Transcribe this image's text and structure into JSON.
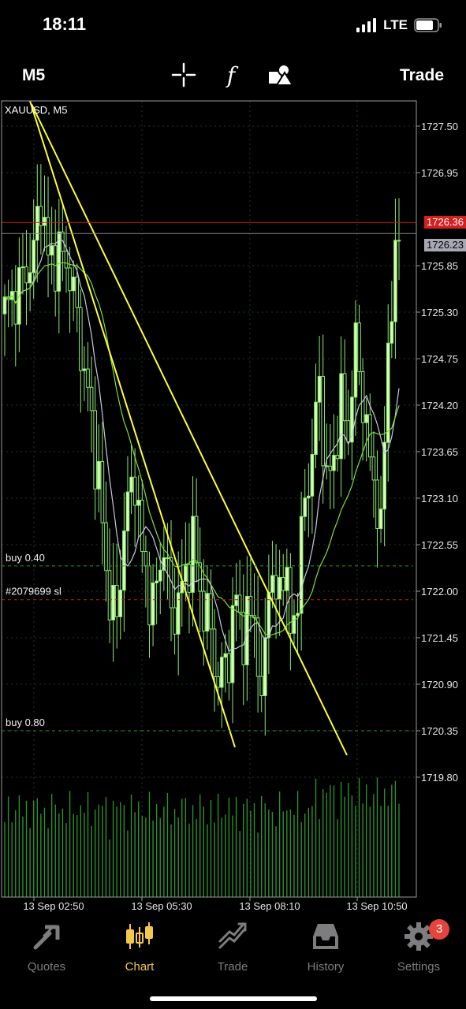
{
  "status_bar": {
    "time": "18:11",
    "network": "LTE"
  },
  "toolbar": {
    "timeframe": "M5",
    "trade_label": "Trade"
  },
  "chart": {
    "symbol_label": "XAUUSD, M5",
    "price_labels": [
      "1727.50",
      "1726.95",
      "1725.85",
      "1725.30",
      "1724.75",
      "1724.20",
      "1723.65",
      "1723.10",
      "1722.55",
      "1722.00",
      "1721.45",
      "1720.90",
      "1720.35",
      "1719.80"
    ],
    "bid_label": "1726.36",
    "ask_label": "1726.23",
    "time_labels": [
      "13 Sep 02:50",
      "13 Sep 05:30",
      "13 Sep 08:10",
      "13 Sep 10:50"
    ],
    "order_lines": [
      {
        "label": "buy 0.40",
        "price": 1722.3
      },
      {
        "label": "#2079699 sl",
        "price": 1721.9
      },
      {
        "label": "buy 0.80",
        "price": 1720.35
      }
    ],
    "bid": 1726.36,
    "ask": 1726.23,
    "colors": {
      "bull": "#d8ffb8",
      "bear": "#8ee870",
      "ma_fast": "#c8c8e8",
      "ma_slow": "#7ee03a",
      "trendline": "#ffff33",
      "bid_line": "#c81e1e",
      "ask_line": "#888888",
      "volume": "#2f8f2f"
    }
  },
  "tabs": [
    {
      "label": "Quotes",
      "icon": "quotes-icon"
    },
    {
      "label": "Chart",
      "icon": "chart-icon",
      "active": true
    },
    {
      "label": "Trade",
      "icon": "trade-icon"
    },
    {
      "label": "History",
      "icon": "history-icon"
    },
    {
      "label": "Settings",
      "icon": "settings-icon",
      "badge": "3"
    }
  ]
}
